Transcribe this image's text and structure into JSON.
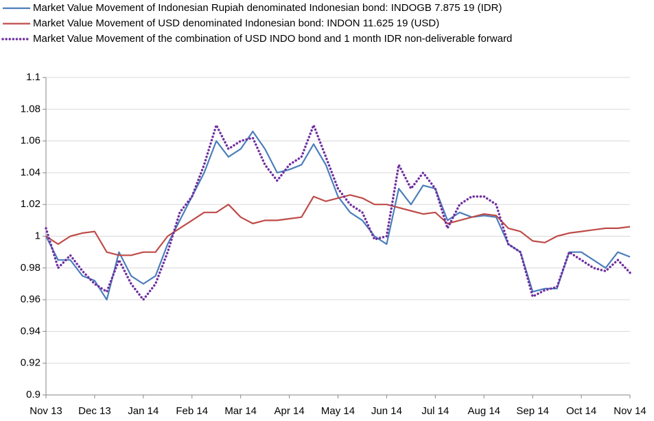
{
  "chart_data": {
    "type": "line",
    "categories": [
      "Nov 13",
      null,
      null,
      null,
      "Dec 13",
      null,
      null,
      null,
      "Jan 14",
      null,
      null,
      null,
      "Feb 14",
      null,
      null,
      null,
      "Mar 14",
      null,
      null,
      null,
      "Apr 14",
      null,
      null,
      null,
      "May 14",
      null,
      null,
      null,
      "Jun 14",
      null,
      null,
      null,
      "Jul 14",
      null,
      null,
      null,
      "Aug 14",
      null,
      null,
      null,
      "Sep 14",
      null,
      null,
      null,
      "Oct 14",
      null,
      null,
      null,
      "Nov 14"
    ],
    "series": [
      {
        "name": "Market Value Movement of Indonesian Rupiah denominated Indonesian bond: INDOGB 7.875 19 (IDR)",
        "color": "#4a7ebb",
        "style": "solid",
        "values": [
          1.0,
          0.985,
          0.985,
          0.975,
          0.972,
          0.96,
          0.99,
          0.975,
          0.97,
          0.975,
          0.995,
          1.01,
          1.025,
          1.04,
          1.06,
          1.05,
          1.055,
          1.066,
          1.055,
          1.04,
          1.042,
          1.045,
          1.058,
          1.045,
          1.025,
          1.015,
          1.01,
          1.0,
          0.995,
          1.03,
          1.02,
          1.032,
          1.03,
          1.01,
          1.015,
          1.012,
          1.013,
          1.012,
          0.995,
          0.99,
          0.965,
          0.967,
          0.967,
          0.99,
          0.99,
          0.985,
          0.98,
          0.99,
          0.987
        ]
      },
      {
        "name": "Market Value Movement of USD denominated Indonesian bond: INDON 11.625 19 (USD)",
        "color": "#be4b48",
        "style": "solid",
        "values": [
          1.0,
          0.995,
          1.0,
          1.002,
          1.003,
          0.99,
          0.988,
          0.988,
          0.99,
          0.99,
          1.0,
          1.005,
          1.01,
          1.015,
          1.015,
          1.02,
          1.012,
          1.008,
          1.01,
          1.01,
          1.011,
          1.012,
          1.025,
          1.022,
          1.024,
          1.026,
          1.024,
          1.02,
          1.02,
          1.018,
          1.016,
          1.014,
          1.015,
          1.008,
          1.01,
          1.012,
          1.014,
          1.013,
          1.005,
          1.003,
          0.997,
          0.996,
          1.0,
          1.002,
          1.003,
          1.004,
          1.005,
          1.005,
          1.006
        ]
      },
      {
        "name": "Market Value  Movement of the combination of USD INDO bond and 1 month IDR non-deliverable forward",
        "color": "#7030a0",
        "style": "dotted",
        "values": [
          1.005,
          0.98,
          0.988,
          0.978,
          0.97,
          0.965,
          0.985,
          0.97,
          0.96,
          0.97,
          0.99,
          1.015,
          1.025,
          1.045,
          1.07,
          1.055,
          1.06,
          1.062,
          1.045,
          1.035,
          1.045,
          1.05,
          1.07,
          1.05,
          1.03,
          1.02,
          1.015,
          0.998,
          1.0,
          1.045,
          1.03,
          1.04,
          1.03,
          1.005,
          1.02,
          1.025,
          1.025,
          1.02,
          0.995,
          0.99,
          0.962,
          0.966,
          0.968,
          0.99,
          0.985,
          0.98,
          0.978,
          0.985,
          0.977
        ]
      }
    ],
    "ylim": [
      0.9,
      1.1
    ],
    "yticks": [
      0.9,
      0.92,
      0.94,
      0.96,
      0.98,
      1,
      1.02,
      1.04,
      1.06,
      1.08,
      1.1
    ],
    "grid": true,
    "legend": "top"
  }
}
